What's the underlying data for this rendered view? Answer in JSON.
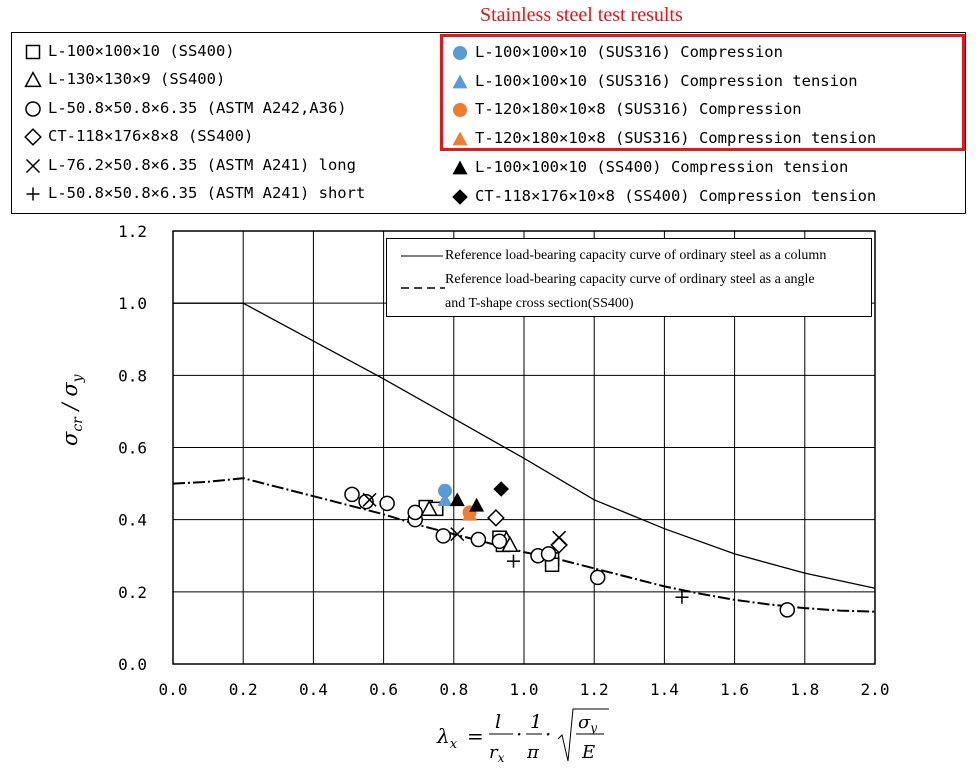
{
  "header": {
    "stainless_title": "Stainless steel test results"
  },
  "legend_left": [
    {
      "marker": "square-open",
      "label": "L-100×100×10 (SS400)"
    },
    {
      "marker": "triangle-open",
      "label": "L-130×130×9 (SS400)"
    },
    {
      "marker": "circle-open",
      "label": "L-50.8×50.8×6.35 (ASTM A242,A36)"
    },
    {
      "marker": "diamond-open",
      "label": "CT-118×176×8×8 (SS400)"
    },
    {
      "marker": "cross",
      "label": "L-76.2×50.8×6.35 (ASTM A241) long"
    },
    {
      "marker": "plus",
      "label": "L-50.8×50.8×6.35 (ASTM A241) short"
    }
  ],
  "legend_right": [
    {
      "marker": "circle-filled",
      "color": "#5b9bd5",
      "label": "L-100×100×10 (SUS316) Compression"
    },
    {
      "marker": "triangle-filled",
      "color": "#5b9bd5",
      "label": "L-100×100×10 (SUS316) Compression tension"
    },
    {
      "marker": "circle-filled",
      "color": "#ed7d31",
      "label": "T-120×180×10×8 (SUS316) Compression"
    },
    {
      "marker": "triangle-filled",
      "color": "#ed7d31",
      "label": "T-120×180×10×8 (SUS316) Compression tension"
    },
    {
      "marker": "triangle-filled",
      "color": "#000000",
      "label": "L-100×100×10 (SS400) Compression tension"
    },
    {
      "marker": "diamond-filled",
      "color": "#000000",
      "label": "CT-118×176×10×8 (SS400) Compression tension"
    }
  ],
  "ref_legend": {
    "line1": "Reference load-bearing capacity curve of ordinary steel as a column",
    "line2a": "Reference load-bearing capacity curve of ordinary steel as a angle",
    "line2b": "and T-shape cross section(SS400)"
  },
  "chart_data": {
    "type": "scatter",
    "xlim": [
      0.0,
      2.0
    ],
    "ylim": [
      0.0,
      1.2
    ],
    "x_ticks": [
      "0.0",
      "0.2",
      "0.4",
      "0.6",
      "0.8",
      "1.0",
      "1.2",
      "1.4",
      "1.6",
      "1.8",
      "2.0"
    ],
    "y_ticks": [
      "0.0",
      "0.2",
      "0.4",
      "0.6",
      "0.8",
      "1.0",
      "1.2"
    ],
    "ylabel": "σcr/σy",
    "xlabel_parts": {
      "lhs": "λx",
      "eq": "=",
      "l": "l",
      "rx": "rx",
      "one": "1",
      "pi": "π",
      "sy": "σy",
      "E": "E"
    },
    "grid": true,
    "reference_curves": [
      {
        "name": "column",
        "style": "solid",
        "points": [
          [
            0,
            1.0
          ],
          [
            0.2,
            1.0
          ],
          [
            0.4,
            0.895
          ],
          [
            0.6,
            0.79
          ],
          [
            0.8,
            0.68
          ],
          [
            1.0,
            0.57
          ],
          [
            1.2,
            0.455
          ],
          [
            1.4,
            0.375
          ],
          [
            1.6,
            0.305
          ],
          [
            1.8,
            0.252
          ],
          [
            2.0,
            0.21
          ]
        ]
      },
      {
        "name": "angle-T",
        "style": "dashed",
        "points": [
          [
            0,
            0.5
          ],
          [
            0.1,
            0.505
          ],
          [
            0.2,
            0.515
          ],
          [
            0.3,
            0.49
          ],
          [
            0.4,
            0.465
          ],
          [
            0.5,
            0.44
          ],
          [
            0.6,
            0.415
          ],
          [
            0.7,
            0.385
          ],
          [
            0.8,
            0.36
          ],
          [
            0.9,
            0.335
          ],
          [
            1.0,
            0.31
          ],
          [
            1.1,
            0.29
          ],
          [
            1.2,
            0.265
          ],
          [
            1.3,
            0.24
          ],
          [
            1.4,
            0.215
          ],
          [
            1.5,
            0.195
          ],
          [
            1.6,
            0.178
          ],
          [
            1.7,
            0.165
          ],
          [
            1.8,
            0.155
          ],
          [
            1.9,
            0.148
          ],
          [
            2.0,
            0.145
          ]
        ]
      }
    ],
    "series": [
      {
        "marker": "square-open",
        "points": [
          [
            0.72,
            0.435
          ],
          [
            0.75,
            0.43
          ],
          [
            0.93,
            0.35
          ],
          [
            0.94,
            0.33
          ],
          [
            1.08,
            0.29
          ],
          [
            1.08,
            0.275
          ]
        ]
      },
      {
        "marker": "triangle-open",
        "points": [
          [
            0.73,
            0.43
          ],
          [
            0.95,
            0.345
          ],
          [
            0.96,
            0.33
          ]
        ]
      },
      {
        "marker": "circle-open",
        "points": [
          [
            0.51,
            0.47
          ],
          [
            0.55,
            0.45
          ],
          [
            0.61,
            0.445
          ],
          [
            0.69,
            0.4
          ],
          [
            0.69,
            0.42
          ],
          [
            0.77,
            0.355
          ],
          [
            0.87,
            0.345
          ],
          [
            0.93,
            0.34
          ],
          [
            1.04,
            0.3
          ],
          [
            1.07,
            0.305
          ],
          [
            1.21,
            0.24
          ],
          [
            1.75,
            0.15
          ]
        ]
      },
      {
        "marker": "diamond-open",
        "points": [
          [
            0.92,
            0.405
          ],
          [
            1.1,
            0.33
          ]
        ]
      },
      {
        "marker": "cross",
        "points": [
          [
            0.56,
            0.455
          ],
          [
            0.81,
            0.36
          ],
          [
            1.1,
            0.35
          ]
        ]
      },
      {
        "marker": "plus",
        "points": [
          [
            0.97,
            0.285
          ],
          [
            1.45,
            0.185
          ]
        ]
      },
      {
        "marker": "circle-filled",
        "color": "#5b9bd5",
        "points": [
          [
            0.775,
            0.48
          ]
        ]
      },
      {
        "marker": "triangle-filled",
        "color": "#5b9bd5",
        "points": [
          [
            0.775,
            0.455
          ]
        ]
      },
      {
        "marker": "circle-filled",
        "color": "#ed7d31",
        "points": [
          [
            0.845,
            0.42
          ]
        ]
      },
      {
        "marker": "triangle-filled",
        "color": "#ed7d31",
        "points": [
          [
            0.845,
            0.415
          ]
        ]
      },
      {
        "marker": "triangle-filled",
        "color": "#000000",
        "points": [
          [
            0.81,
            0.455
          ],
          [
            0.865,
            0.44
          ]
        ]
      },
      {
        "marker": "diamond-filled",
        "color": "#000000",
        "points": [
          [
            0.935,
            0.485
          ]
        ]
      }
    ]
  }
}
